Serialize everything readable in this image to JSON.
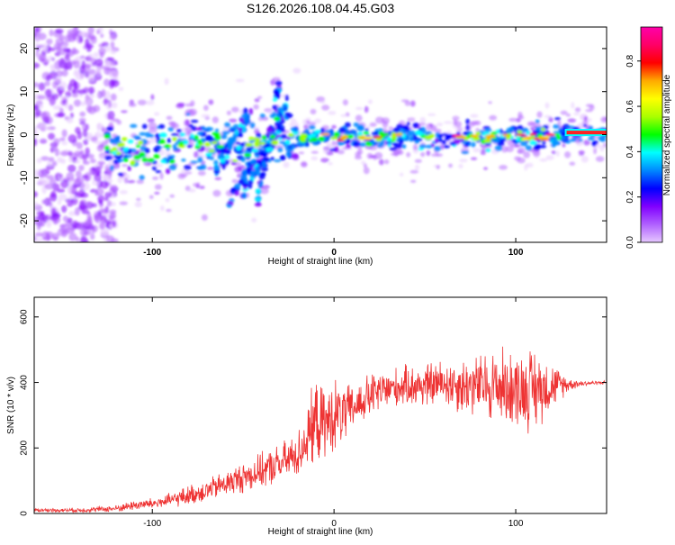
{
  "title": "S126.2026.108.04.45.G03",
  "chart_data": [
    {
      "type": "heatmap",
      "xlabel": "Height of straight line (km)",
      "ylabel": "Frequency (Hz)",
      "xlim": [
        -165,
        150
      ],
      "ylim": [
        -25,
        25
      ],
      "xticks": [
        -100,
        0,
        100
      ],
      "xtick_labels": [
        "-100",
        "0",
        "100"
      ],
      "yticks": [
        -20,
        -10,
        0,
        10,
        20
      ],
      "ytick_labels": [
        "-20",
        "-10",
        "0",
        "10",
        "20"
      ],
      "centerline": {
        "heights": [
          -125,
          -120,
          -110,
          -100,
          -90,
          -80,
          -70,
          -60,
          -50,
          -40,
          -35,
          -30,
          -25,
          -20,
          0,
          20,
          40,
          60,
          80,
          100,
          120,
          130,
          150
        ],
        "frequency": [
          -3,
          -4,
          -4,
          -4,
          -3,
          -1.5,
          -3,
          -2,
          -4,
          -1,
          0,
          1,
          0,
          -0.5,
          -0.5,
          -1,
          0,
          -1,
          -0.5,
          -0.5,
          -0.5,
          0.5,
          0.5
        ]
      },
      "strong_band": {
        "from": -25,
        "to": 150,
        "frequency": 0
      },
      "colorbar": {
        "label": "Normalized spectral amplitude",
        "range": [
          0.0,
          0.95
        ],
        "ticks": [
          0.0,
          0.2,
          0.4,
          0.6,
          0.8
        ],
        "tick_labels": [
          "0.0",
          "0.2",
          "0.4",
          "0.6",
          "0.8"
        ],
        "colors": [
          "#e6c8ff",
          "#b060ff",
          "#8000ff",
          "#0000ff",
          "#0088ff",
          "#00ffff",
          "#00ff00",
          "#aaff00",
          "#ffff00",
          "#ffaa00",
          "#ff0000",
          "#ff0066",
          "#ff00aa"
        ]
      }
    },
    {
      "type": "line",
      "xlabel": "Height of straight line (km)",
      "ylabel": "SNR (10 * v/v)",
      "xlim": [
        -165,
        150
      ],
      "ylim": [
        0,
        660
      ],
      "xticks": [
        -100,
        0,
        100
      ],
      "xtick_labels": [
        "-100",
        "0",
        "100"
      ],
      "yticks": [
        0,
        200,
        400,
        600
      ],
      "ytick_labels": [
        "0",
        "200",
        "400",
        "600"
      ],
      "series": [
        {
          "name": "SNR",
          "color": "#ee3333",
          "x": [
            -165,
            -140,
            -120,
            -110,
            -100,
            -90,
            -80,
            -70,
            -60,
            -50,
            -40,
            -30,
            -20,
            -15,
            -10,
            -5,
            0,
            5,
            10,
            20,
            30,
            40,
            50,
            60,
            70,
            80,
            90,
            100,
            110,
            120,
            130,
            140,
            150
          ],
          "mean": [
            10,
            10,
            15,
            25,
            30,
            40,
            55,
            70,
            90,
            110,
            130,
            150,
            180,
            230,
            280,
            270,
            300,
            300,
            320,
            360,
            380,
            390,
            390,
            400,
            390,
            390,
            390,
            380,
            380,
            390,
            395,
            398,
            400
          ],
          "amp": [
            6,
            8,
            12,
            18,
            20,
            25,
            35,
            40,
            45,
            55,
            60,
            70,
            80,
            110,
            150,
            120,
            130,
            110,
            80,
            80,
            70,
            70,
            80,
            80,
            100,
            110,
            140,
            130,
            150,
            80,
            20,
            8,
            6
          ]
        }
      ]
    }
  ]
}
